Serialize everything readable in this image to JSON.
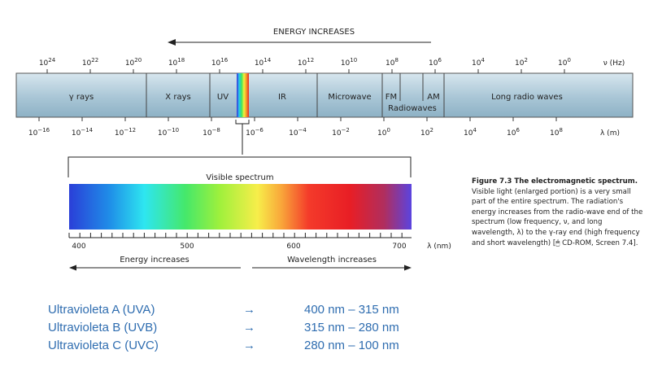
{
  "top": {
    "energy_label": "ENERGY INCREASES",
    "freq_ticks": [
      {
        "base": "10",
        "exp": "24"
      },
      {
        "base": "10",
        "exp": "22"
      },
      {
        "base": "10",
        "exp": "20"
      },
      {
        "base": "10",
        "exp": "18"
      },
      {
        "base": "10",
        "exp": "16"
      },
      {
        "base": "10",
        "exp": "14"
      },
      {
        "base": "10",
        "exp": "12"
      },
      {
        "base": "10",
        "exp": "10"
      },
      {
        "base": "10",
        "exp": "8"
      },
      {
        "base": "10",
        "exp": "6"
      },
      {
        "base": "10",
        "exp": "4"
      },
      {
        "base": "10",
        "exp": "2"
      },
      {
        "base": "10",
        "exp": "0"
      }
    ],
    "freq_unit": "ν (Hz)",
    "regions": [
      {
        "label": "γ rays"
      },
      {
        "label": "X rays"
      },
      {
        "label": "UV"
      },
      {
        "label": "IR"
      },
      {
        "label": "Microwave"
      },
      {
        "label": "FM"
      },
      {
        "label": "AM"
      },
      {
        "label": "Radiowaves"
      },
      {
        "label": "Long radio waves"
      }
    ],
    "wave_ticks": [
      {
        "base": "10",
        "exp": "−16"
      },
      {
        "base": "10",
        "exp": "−14"
      },
      {
        "base": "10",
        "exp": "−12"
      },
      {
        "base": "10",
        "exp": "−10"
      },
      {
        "base": "10",
        "exp": "−8"
      },
      {
        "base": "10",
        "exp": "−6"
      },
      {
        "base": "10",
        "exp": "−4"
      },
      {
        "base": "10",
        "exp": "−2"
      },
      {
        "base": "10",
        "exp": "0"
      },
      {
        "base": "10",
        "exp": "2"
      },
      {
        "base": "10",
        "exp": "4"
      },
      {
        "base": "10",
        "exp": "6"
      },
      {
        "base": "10",
        "exp": "8"
      }
    ],
    "wave_unit": "λ (m)"
  },
  "visible": {
    "title": "Visible spectrum",
    "ticks": [
      "400",
      "500",
      "600",
      "700"
    ],
    "unit": "λ (nm)",
    "energy_label": "Energy increases",
    "wavelength_label": "Wavelength increases"
  },
  "caption": {
    "bold": "Figure 7.3  The electromagnetic spectrum.",
    "text": " Visible light (enlarged portion) is a very small part of the entire spectrum. The radiation's energy increases from the radio-wave end of the spectrum (low frequency, ν, and long wavelength, λ) to the γ-ray end (high frequency and short wavelength) [",
    "tail": " CD-ROM, Screen 7.4]."
  },
  "uv_list": [
    {
      "name": "Ultravioleta A (UVA)",
      "arrow": "→",
      "range": "400 nm – 315 nm"
    },
    {
      "name": "Ultravioleta B (UVB)",
      "arrow": "→",
      "range": "315 nm – 280 nm"
    },
    {
      "name": "Ultravioleta C (UVC)",
      "arrow": "→",
      "range": "280 nm – 100 nm"
    }
  ]
}
